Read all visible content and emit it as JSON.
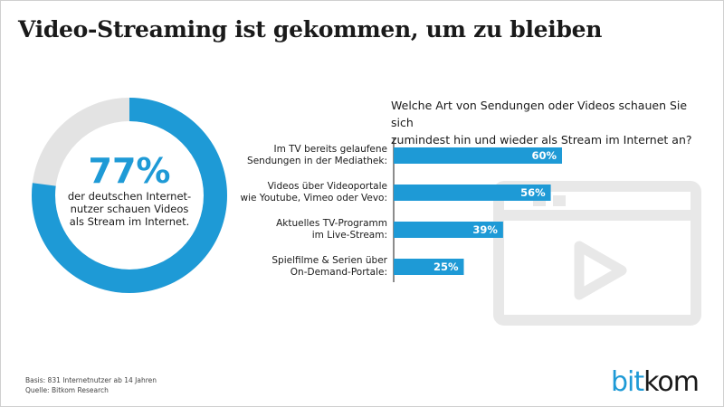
{
  "title": "Video-Streaming ist gekommen, um zu bleiben",
  "donut": {
    "percent_label": "77%",
    "value": 77,
    "description": "der deutschen Internet-nutzer schauen Videos als Stream im Internet."
  },
  "chart_data": [
    {
      "type": "pie",
      "slices": [
        {
          "value": 77
        },
        {
          "value": 23
        }
      ]
    },
    {
      "type": "bar",
      "orientation": "horizontal",
      "title": "Welche Art von Sendungen oder Videos schauen Sie sich zumindest hin und wieder als Stream im Internet an?",
      "categories": [
        "Im TV bereits gelaufene Sendungen in der Mediathek:",
        "Videos über Videoportale wie Youtube, Vimeo oder Vevo:",
        "Aktuelles TV-Programm im Live-Stream:",
        "Spielfilme & Serien über On-Demand-Portale:"
      ],
      "category_lines": [
        [
          "Im TV bereits gelaufene",
          "Sendungen in der Mediathek:"
        ],
        [
          "Videos über Videoportale",
          "wie Youtube, Vimeo oder Vevo:"
        ],
        [
          "Aktuelles TV-Programm",
          "im Live-Stream:"
        ],
        [
          "Spielfilme & Serien über",
          "On-Demand-Portale:"
        ]
      ],
      "values": [
        60,
        56,
        39,
        25
      ],
      "value_labels": [
        "60%",
        "56%",
        "39%",
        "25%"
      ],
      "xlim": [
        0,
        100
      ]
    }
  ],
  "question_lines": [
    "Welche Art von Sendungen oder Videos schauen Sie sich",
    "zumindest hin und wieder als Stream im Internet an?"
  ],
  "footnote": {
    "basis": "Basis: 831 Internetnutzer ab 14 Jahren",
    "source": "Quelle: Bitkom Research"
  },
  "logo": {
    "part1": "bit",
    "part2": "kom"
  },
  "colors": {
    "accent": "#1e9ad6",
    "remainder": "#e3e3e3",
    "watermark": "#e8e8e8"
  },
  "watermark_icon": "video-player-icon"
}
